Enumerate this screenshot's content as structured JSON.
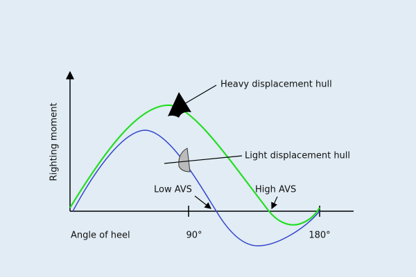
{
  "title": "Righting moment",
  "x_axis_label": "Angle of heel",
  "ticks": [
    "90°",
    "180°"
  ],
  "annotations": {
    "heavy": "Heavy displacement hull",
    "light": "Light displacement hull",
    "low_avs": "Low AVS",
    "high_avs": "High AVS"
  }
}
